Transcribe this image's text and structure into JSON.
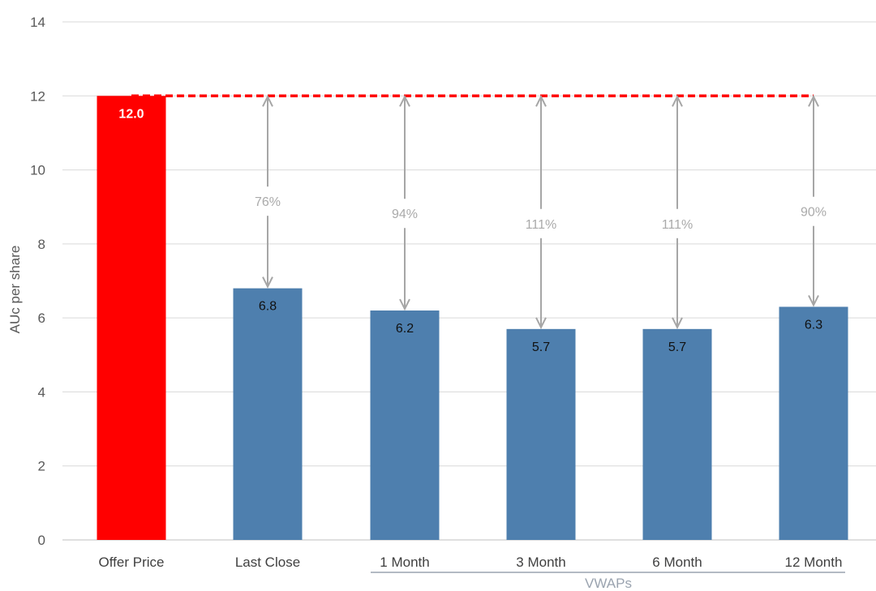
{
  "chart_data": {
    "type": "bar",
    "categories": [
      "Offer Price",
      "Last Close",
      "1 Month",
      "3 Month",
      "6 Month",
      "12 Month"
    ],
    "values": [
      12.0,
      6.8,
      6.2,
      5.7,
      5.7,
      6.3
    ],
    "data_labels": [
      "12.0",
      "6.8",
      "6.2",
      "5.7",
      "5.7",
      "6.3"
    ],
    "bar_colors": [
      "#ff0000",
      "#4e7fae",
      "#4e7fae",
      "#4e7fae",
      "#4e7fae",
      "#4e7fae"
    ],
    "premium_labels": [
      "76%",
      "94%",
      "111%",
      "111%",
      "90%"
    ],
    "reference_line": {
      "value": 12,
      "color": "#ff0000",
      "style": "dashed"
    },
    "ylabel": "AUc  per share",
    "ylim": [
      0,
      14
    ],
    "yticks": [
      0,
      2,
      4,
      6,
      8,
      10,
      12,
      14
    ],
    "group_label": "VWAPs",
    "grid": true,
    "colors": {
      "gridline": "#d9d9d9",
      "arrow": "#a6a6a6",
      "group_bracket": "#9aa3af"
    }
  }
}
